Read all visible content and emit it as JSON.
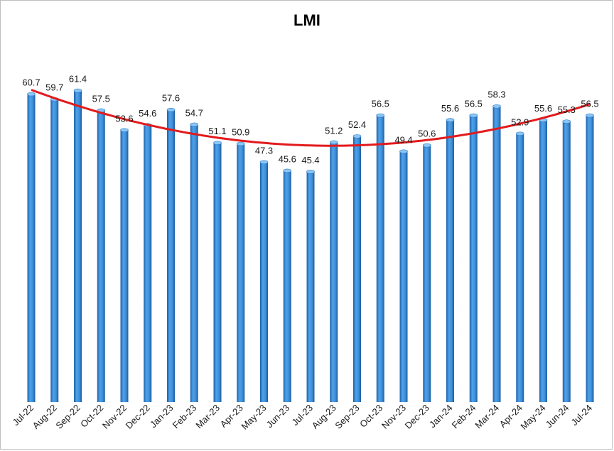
{
  "chart_data": {
    "type": "bar",
    "title": "LMI",
    "xlabel": "",
    "ylabel": "",
    "ylim": [
      0,
      65
    ],
    "categories": [
      "Jul-22",
      "Aug-22",
      "Sep-22",
      "Oct-22",
      "Nov-22",
      "Dec-22",
      "Jan-23",
      "Feb-23",
      "Mar-23",
      "Apr-23",
      "May-23",
      "Jun-23",
      "Jul-23",
      "Aug-23",
      "Sep-23",
      "Oct-23",
      "Nov-23",
      "Dec-23",
      "Jan-24",
      "Feb-24",
      "Mar-24",
      "Apr-24",
      "May-24",
      "Jun-24",
      "Jul-24"
    ],
    "values": [
      60.7,
      59.7,
      61.4,
      57.5,
      53.6,
      54.6,
      57.6,
      54.7,
      51.1,
      50.9,
      47.3,
      45.6,
      45.4,
      51.2,
      52.4,
      56.5,
      49.4,
      50.6,
      55.6,
      56.5,
      58.3,
      52.9,
      55.6,
      55.3,
      56.5
    ],
    "data_labels": [
      "60.7",
      "59.7",
      "61.4",
      "57.5",
      "53.6",
      "54.6",
      "57.6",
      "54.7",
      "51.1",
      "50.9",
      "47.3",
      "45.6",
      "45.4",
      "51.2",
      "52.4",
      "56.5",
      "49.4",
      "50.6",
      "55.6",
      "56.5",
      "58.3",
      "52.9",
      "55.6",
      "55.3",
      "56.5"
    ],
    "trendline": {
      "type": "polynomial",
      "color": "#e31a1c"
    },
    "bar_color": "#3d8fd8"
  }
}
